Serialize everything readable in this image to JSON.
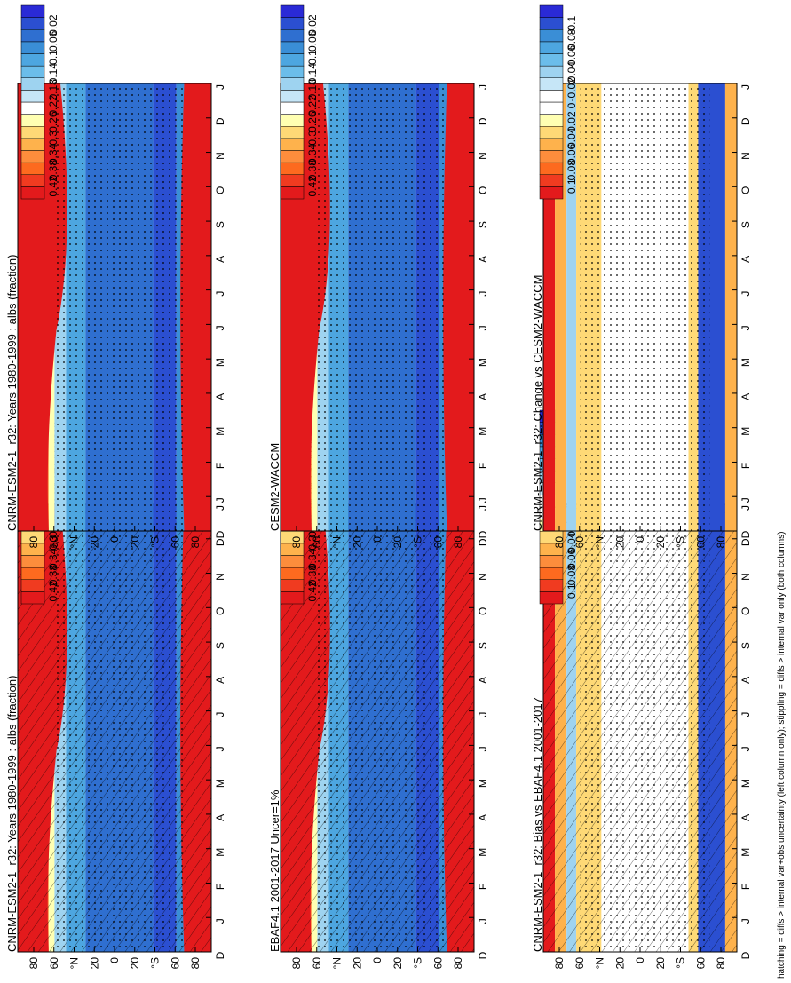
{
  "footnote": "hatching = diffs > internal var+obs uncertainty (left column only); stippling = diffs > internal var only (both columns)",
  "months": [
    "D",
    "J",
    "F",
    "M",
    "A",
    "M",
    "J",
    "J",
    "A",
    "S",
    "O",
    "N",
    "D",
    "J"
  ],
  "lat_ticks": [
    "80",
    "60",
    "°N",
    "20",
    "0",
    "20",
    "°S",
    "60",
    "80"
  ],
  "colorbar_albedo": {
    "labels": [
      "0.42",
      "0.38",
      "0.34",
      "0.3",
      "0.26",
      "0.22",
      "0.18",
      "0.14",
      "0.1",
      "0.06",
      "0.02"
    ],
    "colors": [
      "#e31a1c",
      "#f03b20",
      "#fd6a1f",
      "#fd8d3c",
      "#feb24c",
      "#fed976",
      "#ffffb2",
      "#ffffff",
      "#c6e6f7",
      "#9ed3f0",
      "#6bbdea",
      "#4da6e0",
      "#3a8ed6",
      "#2f6fd0",
      "#2b4fd1",
      "#2a2ad6"
    ]
  },
  "colorbar_diff": {
    "labels": [
      "0.1",
      "0.08",
      "0.06",
      "0.04",
      "0.02",
      "0",
      "-0.02",
      "-0.04",
      "-0.06",
      "-0.08",
      "-0.1"
    ],
    "colors": [
      "#e31a1c",
      "#f03b20",
      "#fd6a1f",
      "#fd8d3c",
      "#feb24c",
      "#fed976",
      "#ffffb2",
      "#ffffff",
      "#ffffff",
      "#c6e6f7",
      "#9ed3f0",
      "#6bbdea",
      "#4da6e0",
      "#3a8ed6",
      "#2b4fd1",
      "#2a2ad6"
    ]
  },
  "panels": [
    {
      "title": "CNRM-ESM2-1_r32: Years 1980-1999 : albs (fraction)",
      "kind": "albedo",
      "hatch": true
    },
    {
      "title": "CNRM-ESM2-1_r32: Years 1980-1999 : albs (fraction)",
      "kind": "albedo",
      "hatch": false
    },
    {
      "title": "EBAF4.1 2001-2017 Uncer=1%",
      "kind": "albedo",
      "hatch": true
    },
    {
      "title": "CESM2-WACCM",
      "kind": "albedo",
      "hatch": false
    },
    {
      "title": "CNRM-ESM2-1_r32: Bias vs EBAF4.1 2001-2017",
      "kind": "diff",
      "hatch": true
    },
    {
      "title": "CNRM-ESM2-1_r32: Change vs CESM2-WACCM",
      "kind": "diff",
      "hatch": false
    }
  ],
  "chart_data": [
    {
      "type": "heatmap",
      "title": "CNRM-ESM2-1_r32: Years 1980-1999 : albs (fraction)",
      "x": "month",
      "y": "latitude",
      "zrange": [
        0.02,
        0.42
      ]
    },
    {
      "type": "heatmap",
      "title": "CNRM-ESM2-1_r32: Years 1980-1999 : albs (fraction)",
      "x": "month",
      "y": "latitude",
      "zrange": [
        0.02,
        0.42
      ]
    },
    {
      "type": "heatmap",
      "title": "EBAF4.1 2001-2017 Uncer=1%",
      "x": "month",
      "y": "latitude",
      "zrange": [
        0.02,
        0.42
      ]
    },
    {
      "type": "heatmap",
      "title": "CESM2-WACCM",
      "x": "month",
      "y": "latitude",
      "zrange": [
        0.02,
        0.42
      ]
    },
    {
      "type": "heatmap",
      "title": "CNRM-ESM2-1_r32: Bias vs EBAF4.1 2001-2017",
      "x": "month",
      "y": "latitude",
      "zrange": [
        -0.1,
        0.1
      ]
    },
    {
      "type": "heatmap",
      "title": "CNRM-ESM2-1_r32: Change vs CESM2-WACCM",
      "x": "month",
      "y": "latitude",
      "zrange": [
        -0.1,
        0.1
      ]
    }
  ]
}
